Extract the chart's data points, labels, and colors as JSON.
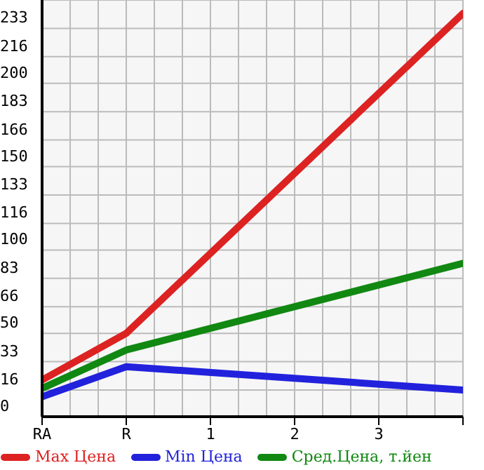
{
  "chart_data": {
    "type": "line",
    "categories": [
      "RA",
      "R",
      "1",
      "2",
      "3",
      null
    ],
    "series": [
      {
        "name": "Max Цена",
        "color": "#dd2222",
        "values": [
          22,
          50,
          null,
          null,
          null,
          242
        ]
      },
      {
        "name": "Min Цена",
        "color": "#2222dd",
        "values": [
          12,
          30,
          null,
          null,
          null,
          16
        ]
      },
      {
        "name": "Сред.Цена, т.йен",
        "color": "#118811",
        "values": [
          17,
          40,
          null,
          null,
          null,
          92
        ]
      }
    ],
    "ylim": [
      0,
      250
    ],
    "yticks": [
      0,
      16,
      33,
      50,
      66,
      83,
      100,
      116,
      133,
      150,
      166,
      183,
      200,
      216,
      233,
      {
        "value": 250,
        "label": null
      }
    ],
    "grid": true,
    "legend": "bottom",
    "marker": "none",
    "line_style": "solid"
  }
}
